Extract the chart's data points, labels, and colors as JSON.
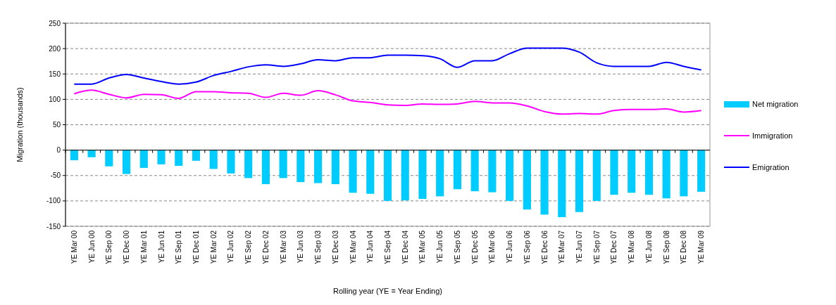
{
  "chart_data": {
    "type": "bar",
    "xlabel": "Rolling year (YE = Year Ending)",
    "ylabel": "Migration (thousands)",
    "categories": [
      "YE Mar 00",
      "YE Jun 00",
      "YE Sep 00",
      "YE Dec 00",
      "YE Mar 01",
      "YE Jun 01",
      "YE Sep 01",
      "YE Dec 01",
      "YE Mar 02",
      "YE Jun 02",
      "YE Sep 02",
      "YE Dec 02",
      "YE Mar 03",
      "YE Jun 03",
      "YE Sep 03",
      "YE Dec 03",
      "YE Mar 04",
      "YE Jun 04",
      "YE Sep 04",
      "YE Dec 04",
      "YE Mar 05",
      "YE Jun 05",
      "YE Sep 05",
      "YE Dec 05",
      "YE Mar 06",
      "YE Jun 06",
      "YE Sep 06",
      "YE Dec 06",
      "YE Mar 07",
      "YE Jun 07",
      "YE Sep 07",
      "YE Dec 07",
      "YE Mar 08",
      "YE Jun 08",
      "YE Sep 08",
      "YE Dec 08",
      "YE Mar 09"
    ],
    "series": [
      {
        "name": "Net migration",
        "color": "#00ccff",
        "values": [
          -20,
          -14,
          -32,
          -47,
          -35,
          -28,
          -31,
          -21,
          -37,
          -46,
          -55,
          -67,
          -55,
          -63,
          -65,
          -67,
          -84,
          -86,
          -100,
          -99,
          -96,
          -91,
          -77,
          -81,
          -83,
          -100,
          -117,
          -127,
          -132,
          -122,
          -100,
          -88,
          -84,
          -88,
          -95,
          -91,
          -82
        ]
      },
      {
        "name": "Immigration",
        "type": "line",
        "color": "#ff00ff",
        "values": [
          111,
          118,
          110,
          103,
          110,
          109,
          102,
          115,
          115,
          113,
          112,
          104,
          112,
          108,
          117,
          109,
          97,
          94,
          89,
          88,
          91,
          90,
          91,
          96,
          93,
          93,
          87,
          76,
          71,
          72,
          71,
          78,
          80,
          80,
          81,
          75,
          78
        ]
      },
      {
        "name": "Emigration",
        "type": "line",
        "color": "#0000ff",
        "values": [
          130,
          130,
          142,
          149,
          142,
          135,
          130,
          134,
          147,
          155,
          164,
          168,
          165,
          170,
          178,
          176,
          182,
          182,
          187,
          187,
          186,
          180,
          163,
          176,
          176,
          190,
          201,
          201,
          201,
          193,
          172,
          165,
          165,
          165,
          173,
          165,
          158
        ]
      }
    ],
    "ylim": [
      -150,
      250
    ],
    "yticks": [
      -150,
      -100,
      -50,
      0,
      50,
      100,
      150,
      200,
      250
    ],
    "grid": "y",
    "legend": "right",
    "marker": "none",
    "line_style": "solid"
  }
}
